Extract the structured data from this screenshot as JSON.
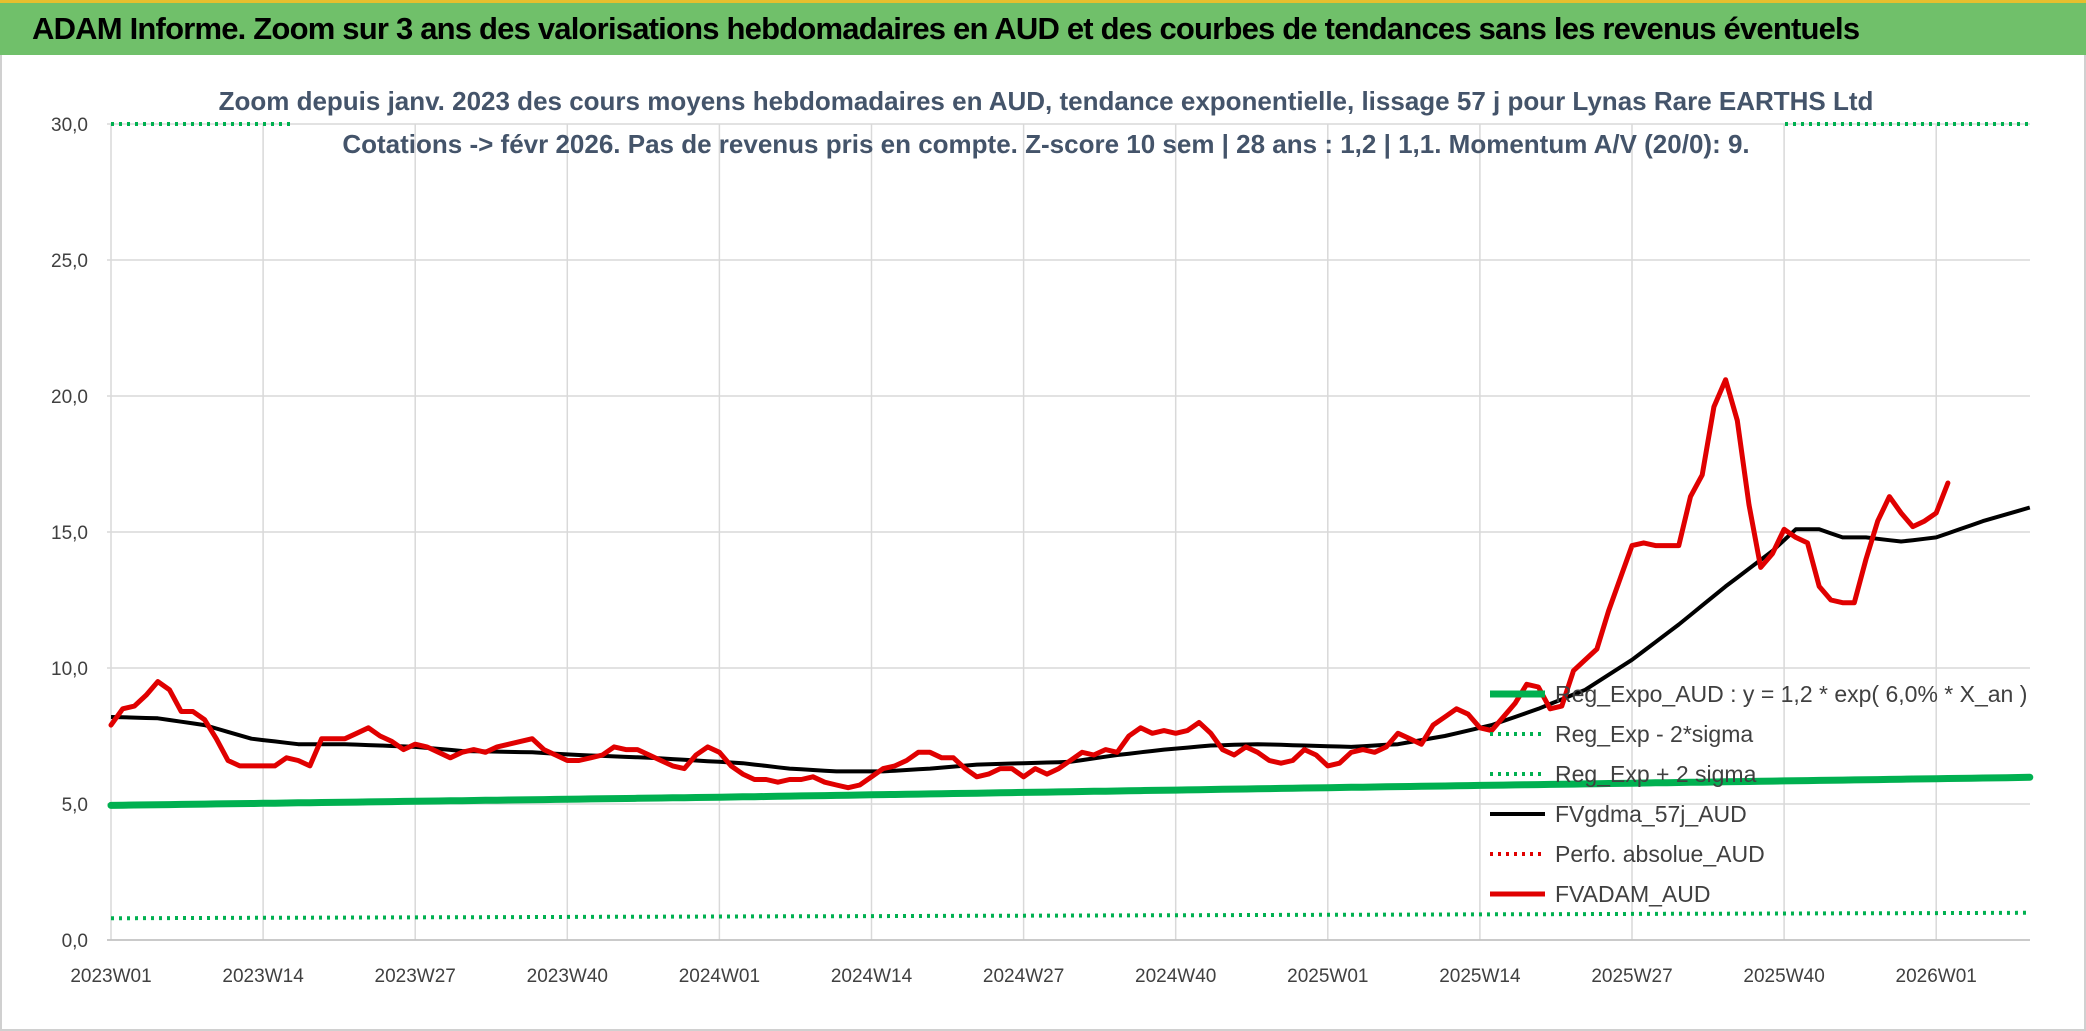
{
  "banner": {
    "title": "ADAM Informe. Zoom sur 3 ans des valorisations hebdomadaires en AUD et des courbes de tendances sans les revenus éventuels"
  },
  "colors": {
    "banner_bg": "#70c06a",
    "green": "#00b050",
    "black": "#000000",
    "red": "#e00000",
    "grid": "#d9d9d9"
  },
  "chart_data": {
    "type": "line",
    "title_lines": [
      "Zoom depuis janv. 2023 des cours moyens hebdomadaires en AUD, tendance exponentielle, lissage 57 j pour Lynas Rare EARTHS Ltd",
      "Cotations -> févr 2026. Pas de revenus pris en compte. Z-score 10 sem | 28 ans : 1,2 | 1,1. Momentum A/V (20/0): 9."
    ],
    "ylim": [
      0,
      30
    ],
    "grid": true,
    "legend_position": "right",
    "yticks": [
      "0,0",
      "5,0",
      "10,0",
      "15,0",
      "20,0",
      "25,0",
      "30,0"
    ],
    "xticks": [
      "2023W01",
      "2023W14",
      "2023W27",
      "2023W40",
      "2024W01",
      "2024W14",
      "2024W27",
      "2024W40",
      "2025W01",
      "2025W14",
      "2025W27",
      "2025W40",
      "2026W01"
    ],
    "x_week_index_of_ticks": [
      0,
      13,
      26,
      39,
      52,
      65,
      78,
      91,
      104,
      117,
      130,
      143,
      156
    ],
    "n_weeks": 164,
    "series": [
      {
        "name": "Reg_Expo_AUD : y = 1,2 * exp( 6,0% *  X_an )",
        "style": "solid-thick",
        "color": "#00b050",
        "knots": [
          [
            0,
            4.95
          ],
          [
            52,
            5.25
          ],
          [
            104,
            5.6
          ],
          [
            156,
            5.93
          ],
          [
            164,
            5.98
          ]
        ]
      },
      {
        "name": "Reg_Exp - 2*sigma",
        "style": "dotted",
        "color": "#00b050",
        "knots": [
          [
            0,
            0.8
          ],
          [
            164,
            1.0
          ]
        ]
      },
      {
        "name": "Reg_Exp + 2 sigma",
        "style": "dotted",
        "color": "#00b050",
        "knots": [
          [
            0,
            30.0
          ],
          [
            164,
            30.0
          ]
        ]
      },
      {
        "name": "FVgdma_57j_AUD",
        "style": "solid",
        "color": "#000000",
        "knots": [
          [
            0,
            8.2
          ],
          [
            4,
            8.15
          ],
          [
            8,
            7.9
          ],
          [
            12,
            7.4
          ],
          [
            16,
            7.2
          ],
          [
            20,
            7.2
          ],
          [
            26,
            7.1
          ],
          [
            30,
            6.95
          ],
          [
            36,
            6.9
          ],
          [
            40,
            6.8
          ],
          [
            46,
            6.7
          ],
          [
            50,
            6.6
          ],
          [
            54,
            6.5
          ],
          [
            58,
            6.3
          ],
          [
            62,
            6.2
          ],
          [
            66,
            6.2
          ],
          [
            70,
            6.3
          ],
          [
            74,
            6.45
          ],
          [
            78,
            6.5
          ],
          [
            82,
            6.55
          ],
          [
            86,
            6.8
          ],
          [
            90,
            7.0
          ],
          [
            94,
            7.15
          ],
          [
            98,
            7.2
          ],
          [
            102,
            7.15
          ],
          [
            106,
            7.1
          ],
          [
            110,
            7.2
          ],
          [
            114,
            7.5
          ],
          [
            118,
            7.9
          ],
          [
            122,
            8.5
          ],
          [
            126,
            9.2
          ],
          [
            130,
            10.3
          ],
          [
            134,
            11.6
          ],
          [
            138,
            13.0
          ],
          [
            142,
            14.3
          ],
          [
            144,
            15.1
          ],
          [
            146,
            15.1
          ],
          [
            148,
            14.8
          ],
          [
            150,
            14.8
          ],
          [
            153,
            14.65
          ],
          [
            156,
            14.8
          ],
          [
            160,
            15.4
          ],
          [
            164,
            15.9
          ]
        ]
      },
      {
        "name": "Perfo. absolue_AUD",
        "style": "dotted",
        "color": "#e00000",
        "knots": []
      },
      {
        "name": "FVADAM_AUD",
        "style": "solid-thick",
        "color": "#e00000",
        "knots": [
          [
            0,
            7.9
          ],
          [
            1,
            8.5
          ],
          [
            2,
            8.6
          ],
          [
            3,
            9.0
          ],
          [
            4,
            9.5
          ],
          [
            5,
            9.2
          ],
          [
            6,
            8.4
          ],
          [
            7,
            8.4
          ],
          [
            8,
            8.1
          ],
          [
            9,
            7.4
          ],
          [
            10,
            6.6
          ],
          [
            11,
            6.4
          ],
          [
            12,
            6.4
          ],
          [
            13,
            6.4
          ],
          [
            14,
            6.4
          ],
          [
            15,
            6.7
          ],
          [
            16,
            6.6
          ],
          [
            17,
            6.4
          ],
          [
            18,
            7.4
          ],
          [
            19,
            7.4
          ],
          [
            20,
            7.4
          ],
          [
            21,
            7.6
          ],
          [
            22,
            7.8
          ],
          [
            23,
            7.5
          ],
          [
            24,
            7.3
          ],
          [
            25,
            7.0
          ],
          [
            26,
            7.2
          ],
          [
            27,
            7.1
          ],
          [
            28,
            6.9
          ],
          [
            29,
            6.7
          ],
          [
            30,
            6.9
          ],
          [
            31,
            7.0
          ],
          [
            32,
            6.9
          ],
          [
            33,
            7.1
          ],
          [
            34,
            7.2
          ],
          [
            35,
            7.3
          ],
          [
            36,
            7.4
          ],
          [
            37,
            7.0
          ],
          [
            38,
            6.8
          ],
          [
            39,
            6.6
          ],
          [
            40,
            6.6
          ],
          [
            41,
            6.7
          ],
          [
            42,
            6.8
          ],
          [
            43,
            7.1
          ],
          [
            44,
            7.0
          ],
          [
            45,
            7.0
          ],
          [
            46,
            6.8
          ],
          [
            47,
            6.6
          ],
          [
            48,
            6.4
          ],
          [
            49,
            6.3
          ],
          [
            50,
            6.8
          ],
          [
            51,
            7.1
          ],
          [
            52,
            6.9
          ],
          [
            53,
            6.4
          ],
          [
            54,
            6.1
          ],
          [
            55,
            5.9
          ],
          [
            56,
            5.9
          ],
          [
            57,
            5.8
          ],
          [
            58,
            5.9
          ],
          [
            59,
            5.9
          ],
          [
            60,
            6.0
          ],
          [
            61,
            5.8
          ],
          [
            62,
            5.7
          ],
          [
            63,
            5.6
          ],
          [
            64,
            5.7
          ],
          [
            65,
            6.0
          ],
          [
            66,
            6.3
          ],
          [
            67,
            6.4
          ],
          [
            68,
            6.6
          ],
          [
            69,
            6.9
          ],
          [
            70,
            6.9
          ],
          [
            71,
            6.7
          ],
          [
            72,
            6.7
          ],
          [
            73,
            6.3
          ],
          [
            74,
            6.0
          ],
          [
            75,
            6.1
          ],
          [
            76,
            6.3
          ],
          [
            77,
            6.3
          ],
          [
            78,
            6.0
          ],
          [
            79,
            6.3
          ],
          [
            80,
            6.1
          ],
          [
            81,
            6.3
          ],
          [
            82,
            6.6
          ],
          [
            83,
            6.9
          ],
          [
            84,
            6.8
          ],
          [
            85,
            7.0
          ],
          [
            86,
            6.9
          ],
          [
            87,
            7.5
          ],
          [
            88,
            7.8
          ],
          [
            89,
            7.6
          ],
          [
            90,
            7.7
          ],
          [
            91,
            7.6
          ],
          [
            92,
            7.7
          ],
          [
            93,
            8.0
          ],
          [
            94,
            7.6
          ],
          [
            95,
            7.0
          ],
          [
            96,
            6.8
          ],
          [
            97,
            7.1
          ],
          [
            98,
            6.9
          ],
          [
            99,
            6.6
          ],
          [
            100,
            6.5
          ],
          [
            101,
            6.6
          ],
          [
            102,
            7.0
          ],
          [
            103,
            6.8
          ],
          [
            104,
            6.4
          ],
          [
            105,
            6.5
          ],
          [
            106,
            6.9
          ],
          [
            107,
            7.0
          ],
          [
            108,
            6.9
          ],
          [
            109,
            7.1
          ],
          [
            110,
            7.6
          ],
          [
            111,
            7.4
          ],
          [
            112,
            7.2
          ],
          [
            113,
            7.9
          ],
          [
            114,
            8.2
          ],
          [
            115,
            8.5
          ],
          [
            116,
            8.3
          ],
          [
            117,
            7.8
          ],
          [
            118,
            7.7
          ],
          [
            119,
            8.2
          ],
          [
            120,
            8.7
          ],
          [
            121,
            9.4
          ],
          [
            122,
            9.3
          ],
          [
            123,
            8.5
          ],
          [
            124,
            8.6
          ],
          [
            125,
            9.9
          ],
          [
            126,
            10.3
          ],
          [
            127,
            10.7
          ],
          [
            128,
            12.1
          ],
          [
            129,
            13.3
          ],
          [
            130,
            14.5
          ],
          [
            131,
            14.6
          ],
          [
            132,
            14.5
          ],
          [
            133,
            14.5
          ],
          [
            134,
            14.5
          ],
          [
            135,
            16.3
          ],
          [
            136,
            17.1
          ],
          [
            137,
            19.6
          ],
          [
            138,
            20.6
          ],
          [
            139,
            19.1
          ],
          [
            140,
            16.0
          ],
          [
            141,
            13.7
          ],
          [
            142,
            14.2
          ],
          [
            143,
            15.1
          ],
          [
            144,
            14.8
          ],
          [
            145,
            14.6
          ],
          [
            146,
            13.0
          ],
          [
            147,
            12.5
          ],
          [
            148,
            12.4
          ],
          [
            149,
            12.4
          ],
          [
            150,
            14.0
          ],
          [
            151,
            15.4
          ],
          [
            152,
            16.3
          ],
          [
            153,
            15.7
          ],
          [
            154,
            15.2
          ],
          [
            155,
            15.4
          ],
          [
            156,
            15.7
          ],
          [
            157,
            16.8
          ]
        ]
      }
    ]
  }
}
